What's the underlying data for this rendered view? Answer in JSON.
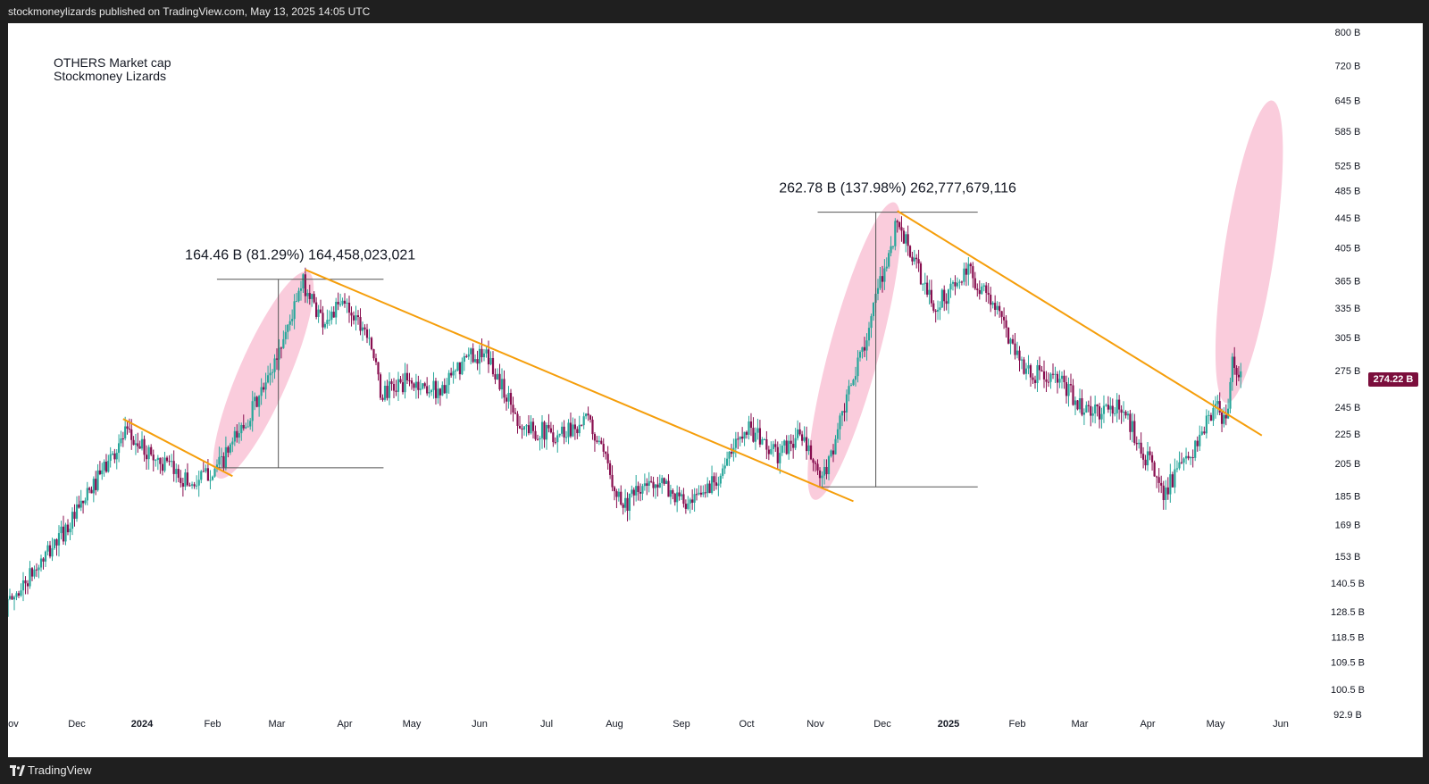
{
  "header": {
    "publisher_text": "stockmoneylizards published on TradingView.com, May 13, 2025 14:05 UTC"
  },
  "footer": {
    "brand": "TradingView",
    "logo_icon": "tradingview-logo-icon"
  },
  "chart_data": {
    "type": "candlestick",
    "title": "OTHERS Market cap",
    "subtitle": "Stockmoney Lizards",
    "y_scale": "log",
    "ylim": [
      92.9,
      800
    ],
    "y_ticks": [
      {
        "value": 800,
        "label": "800 B"
      },
      {
        "value": 720,
        "label": "720 B"
      },
      {
        "value": 645,
        "label": "645 B"
      },
      {
        "value": 585,
        "label": "585 B"
      },
      {
        "value": 525,
        "label": "525 B"
      },
      {
        "value": 485,
        "label": "485 B"
      },
      {
        "value": 445,
        "label": "445 B"
      },
      {
        "value": 405,
        "label": "405 B"
      },
      {
        "value": 365,
        "label": "365 B"
      },
      {
        "value": 335,
        "label": "335 B"
      },
      {
        "value": 305,
        "label": "305 B"
      },
      {
        "value": 275,
        "label": "275 B"
      },
      {
        "value": 245,
        "label": "245 B"
      },
      {
        "value": 225,
        "label": "225 B"
      },
      {
        "value": 205,
        "label": "205 B"
      },
      {
        "value": 185,
        "label": "185 B"
      },
      {
        "value": 169,
        "label": "169 B"
      },
      {
        "value": 153,
        "label": "153 B"
      },
      {
        "value": 140.5,
        "label": "140.5 B"
      },
      {
        "value": 128.5,
        "label": "128.5 B"
      },
      {
        "value": 118.5,
        "label": "118.5 B"
      },
      {
        "value": 109.5,
        "label": "109.5 B"
      },
      {
        "value": 100.5,
        "label": "100.5 B"
      },
      {
        "value": 92.9,
        "label": "92.9 B"
      }
    ],
    "x_ticks": [
      {
        "date": "2023-11-01",
        "label": "Nov"
      },
      {
        "date": "2023-12-01",
        "label": "Dec"
      },
      {
        "date": "2024-01-01",
        "label": "2024"
      },
      {
        "date": "2024-02-01",
        "label": "Feb"
      },
      {
        "date": "2024-03-01",
        "label": "Mar"
      },
      {
        "date": "2024-04-01",
        "label": "Apr"
      },
      {
        "date": "2024-05-01",
        "label": "May"
      },
      {
        "date": "2024-06-01",
        "label": "Jun"
      },
      {
        "date": "2024-07-01",
        "label": "Jul"
      },
      {
        "date": "2024-08-01",
        "label": "Aug"
      },
      {
        "date": "2024-09-01",
        "label": "Sep"
      },
      {
        "date": "2024-10-01",
        "label": "Oct"
      },
      {
        "date": "2024-11-01",
        "label": "Nov"
      },
      {
        "date": "2024-12-01",
        "label": "Dec"
      },
      {
        "date": "2025-01-01",
        "label": "2025"
      },
      {
        "date": "2025-02-01",
        "label": "Feb"
      },
      {
        "date": "2025-03-01",
        "label": "Mar"
      },
      {
        "date": "2025-04-01",
        "label": "Apr"
      },
      {
        "date": "2025-05-01",
        "label": "May"
      },
      {
        "date": "2025-06-01",
        "label": "Jun"
      }
    ],
    "last_price_label": "274.22 B",
    "last_price_value": 274.22,
    "colors": {
      "up": "#26a69a",
      "down": "#880e4f",
      "trendline": "#f59e0b",
      "highlight": "#f8bbd0",
      "measure": "#555555",
      "price_tag": "#7b0e3c"
    },
    "price_path": [
      [
        "2023-10-30",
        130
      ],
      [
        "2023-11-15",
        150
      ],
      [
        "2023-12-01",
        175
      ],
      [
        "2023-12-24",
        225
      ],
      [
        "2024-01-10",
        205
      ],
      [
        "2024-01-23",
        192
      ],
      [
        "2024-02-05",
        205
      ],
      [
        "2024-02-25",
        262
      ],
      [
        "2024-03-13",
        362
      ],
      [
        "2024-03-22",
        322
      ],
      [
        "2024-04-01",
        340
      ],
      [
        "2024-04-12",
        310
      ],
      [
        "2024-04-17",
        255
      ],
      [
        "2024-04-28",
        265
      ],
      [
        "2024-05-15",
        258
      ],
      [
        "2024-05-28",
        290
      ],
      [
        "2024-06-05",
        285
      ],
      [
        "2024-06-20",
        230
      ],
      [
        "2024-07-05",
        225
      ],
      [
        "2024-07-20",
        235
      ],
      [
        "2024-08-05",
        180
      ],
      [
        "2024-08-20",
        195
      ],
      [
        "2024-09-05",
        178
      ],
      [
        "2024-09-22",
        205
      ],
      [
        "2024-09-30",
        232
      ],
      [
        "2024-10-15",
        210
      ],
      [
        "2024-10-25",
        225
      ],
      [
        "2024-11-04",
        193
      ],
      [
        "2024-11-20",
        280
      ],
      [
        "2024-12-08",
        440
      ],
      [
        "2024-12-25",
        335
      ],
      [
        "2025-01-10",
        375
      ],
      [
        "2025-01-20",
        345
      ],
      [
        "2025-02-05",
        275
      ],
      [
        "2025-02-20",
        265
      ],
      [
        "2025-03-05",
        240
      ],
      [
        "2025-03-20",
        245
      ],
      [
        "2025-04-08",
        188
      ],
      [
        "2025-04-20",
        210
      ],
      [
        "2025-05-01",
        245
      ],
      [
        "2025-05-06",
        233
      ],
      [
        "2025-05-09",
        282
      ],
      [
        "2025-05-13",
        274.22
      ]
    ],
    "annotations": [
      {
        "text": "164.46 B (81.29%) 164,458,023,021",
        "from": {
          "date": "2024-02-05",
          "value": 202.3
        },
        "to": {
          "date": "2024-03-13",
          "value": 366.76
        }
      },
      {
        "text": "262.78 B (137.98%) 262,777,679,116",
        "from": {
          "date": "2024-11-04",
          "value": 190.45
        },
        "to": {
          "date": "2024-12-08",
          "value": 453.23
        }
      }
    ],
    "trendlines": [
      {
        "from": {
          "date": "2023-12-23",
          "value": 236
        },
        "to": {
          "date": "2024-02-10",
          "value": 197
        }
      },
      {
        "from": {
          "date": "2024-03-14",
          "value": 378
        },
        "to": {
          "date": "2024-11-18",
          "value": 182
        }
      },
      {
        "from": {
          "date": "2024-12-08",
          "value": 455
        },
        "to": {
          "date": "2025-05-23",
          "value": 224
        }
      }
    ],
    "highlights": [
      {
        "from": {
          "date": "2024-02-06",
          "value": 203
        },
        "to": {
          "date": "2024-03-13",
          "value": 362
        }
      },
      {
        "from": {
          "date": "2024-11-02",
          "value": 190
        },
        "to": {
          "date": "2024-12-05",
          "value": 450
        }
      },
      {
        "from": {
          "date": "2025-05-07",
          "value": 258
        },
        "to": {
          "date": "2025-05-27",
          "value": 620
        }
      }
    ]
  }
}
